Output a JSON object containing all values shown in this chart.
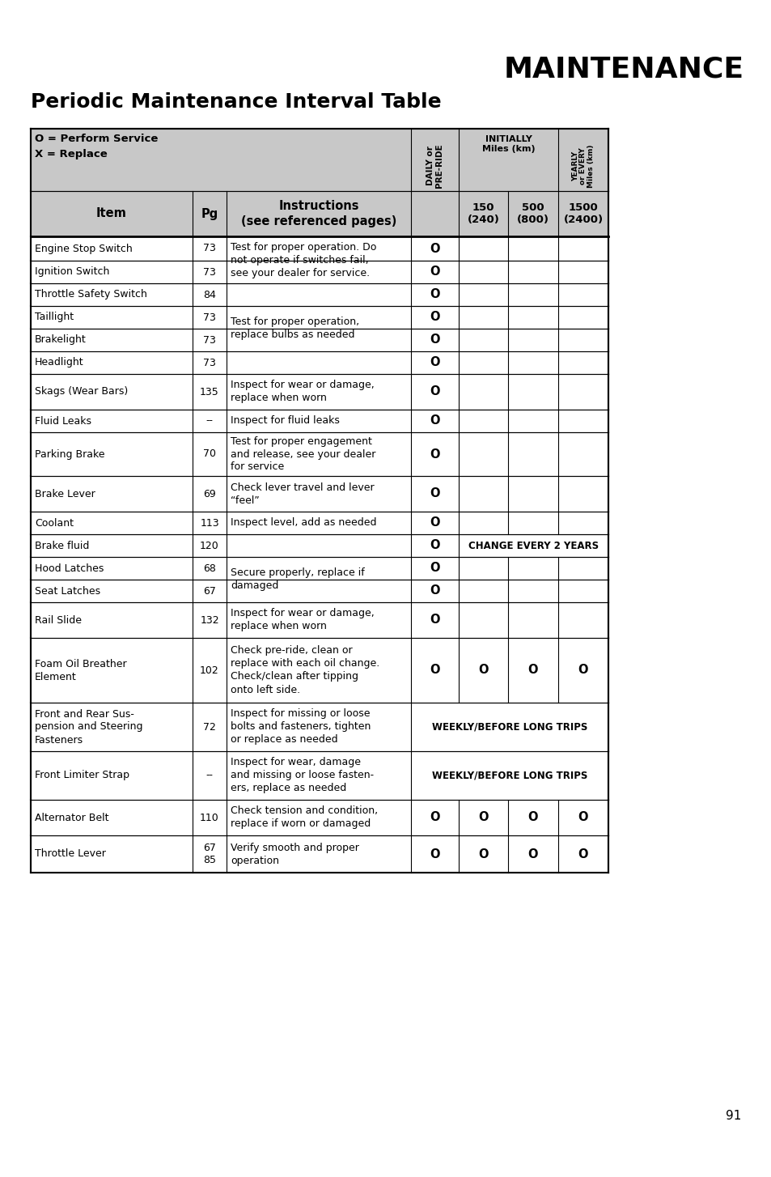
{
  "title_right": "MAINTENANCE",
  "title_left": "Periodic Maintenance Interval Table",
  "page_number": "91",
  "header_legend": "O = Perform Service\nX = Replace",
  "col_headers_daily": "DAILY or\nPRE-RIDE",
  "col_headers_initially": "INITIALLY\nMiles (km)",
  "col_headers_yearly": "YEARLY\nor EVERY\nMiles (km)",
  "sub_item": "Item",
  "sub_pg": "Pg",
  "sub_instructions": "Instructions\n(see referenced pages)",
  "sub_col150": "150\n(240)",
  "sub_col500": "500\n(800)",
  "sub_col1500": "1500\n(2400)",
  "rows": [
    {
      "item": "Engine Stop Switch",
      "pg": "73",
      "instr": "Test for proper operation. Do\nnot operate if switches fail,\nsee your dealer for service.",
      "instr_span": 2,
      "daily": "O",
      "c150": "",
      "c500": "",
      "c1500": "",
      "span_note": null,
      "span_all": false
    },
    {
      "item": "Ignition Switch",
      "pg": "73",
      "instr": null,
      "instr_span": 0,
      "daily": "O",
      "c150": "",
      "c500": "",
      "c1500": "",
      "span_note": null,
      "span_all": false
    },
    {
      "item": "Throttle Safety Switch",
      "pg": "84",
      "instr": "",
      "instr_span": 1,
      "daily": "O",
      "c150": "",
      "c500": "",
      "c1500": "",
      "span_note": null,
      "span_all": false
    },
    {
      "item": "Taillight",
      "pg": "73",
      "instr": "Test for proper operation,\nreplace bulbs as needed",
      "instr_span": 2,
      "daily": "O",
      "c150": "",
      "c500": "",
      "c1500": "",
      "span_note": null,
      "span_all": false
    },
    {
      "item": "Brakelight",
      "pg": "73",
      "instr": null,
      "instr_span": 0,
      "daily": "O",
      "c150": "",
      "c500": "",
      "c1500": "",
      "span_note": null,
      "span_all": false
    },
    {
      "item": "Headlight",
      "pg": "73",
      "instr": "",
      "instr_span": 1,
      "daily": "O",
      "c150": "",
      "c500": "",
      "c1500": "",
      "span_note": null,
      "span_all": false
    },
    {
      "item": "Skags (Wear Bars)",
      "pg": "135",
      "instr": "Inspect for wear or damage,\nreplace when worn",
      "instr_span": 1,
      "daily": "O",
      "c150": "",
      "c500": "",
      "c1500": "",
      "span_note": null,
      "span_all": false
    },
    {
      "item": "Fluid Leaks",
      "pg": "--",
      "instr": "Inspect for fluid leaks",
      "instr_span": 1,
      "daily": "O",
      "c150": "",
      "c500": "",
      "c1500": "",
      "span_note": null,
      "span_all": false
    },
    {
      "item": "Parking Brake",
      "pg": "70",
      "instr": "Test for proper engagement\nand release, see your dealer\nfor service",
      "instr_span": 1,
      "daily": "O",
      "c150": "",
      "c500": "",
      "c1500": "",
      "span_note": null,
      "span_all": false
    },
    {
      "item": "Brake Lever",
      "pg": "69",
      "instr": "Check lever travel and lever\n“feel”",
      "instr_span": 1,
      "daily": "O",
      "c150": "",
      "c500": "",
      "c1500": "",
      "span_note": null,
      "span_all": false
    },
    {
      "item": "Coolant",
      "pg": "113",
      "instr": "Inspect level, add as needed",
      "instr_span": 1,
      "daily": "O",
      "c150": "",
      "c500": "",
      "c1500": "",
      "span_note": null,
      "span_all": false
    },
    {
      "item": "Brake fluid",
      "pg": "120",
      "instr": "",
      "instr_span": 1,
      "daily": "O",
      "c150": "",
      "c500": "",
      "c1500": "",
      "span_note": "CHANGE EVERY 2 YEARS",
      "span_all": false
    },
    {
      "item": "Hood Latches",
      "pg": "68",
      "instr": "Secure properly, replace if\ndamaged",
      "instr_span": 2,
      "daily": "O",
      "c150": "",
      "c500": "",
      "c1500": "",
      "span_note": null,
      "span_all": false
    },
    {
      "item": "Seat Latches",
      "pg": "67",
      "instr": null,
      "instr_span": 0,
      "daily": "O",
      "c150": "",
      "c500": "",
      "c1500": "",
      "span_note": null,
      "span_all": false
    },
    {
      "item": "Rail Slide",
      "pg": "132",
      "instr": "Inspect for wear or damage,\nreplace when worn",
      "instr_span": 1,
      "daily": "O",
      "c150": "",
      "c500": "",
      "c1500": "",
      "span_note": null,
      "span_all": false
    },
    {
      "item": "Foam Oil Breather\nElement",
      "pg": "102",
      "instr": "Check pre-ride, clean or\nreplace with each oil change.\nCheck/clean after tipping\nonto left side.",
      "instr_span": 1,
      "daily": "O",
      "c150": "O",
      "c500": "O",
      "c1500": "O",
      "span_note": null,
      "span_all": false
    },
    {
      "item": "Front and Rear Sus-\npension and Steering\nFasteners",
      "pg": "72",
      "instr": "Inspect for missing or loose\nbolts and fasteners, tighten\nor replace as needed",
      "instr_span": 1,
      "daily": "",
      "c150": "",
      "c500": "",
      "c1500": "",
      "span_note": "WEEKLY/BEFORE LONG TRIPS",
      "span_all": true
    },
    {
      "item": "Front Limiter Strap",
      "pg": "--",
      "instr": "Inspect for wear, damage\nand missing or loose fasten-\ners, replace as needed",
      "instr_span": 1,
      "daily": "",
      "c150": "",
      "c500": "",
      "c1500": "",
      "span_note": "WEEKLY/BEFORE LONG TRIPS",
      "span_all": true
    },
    {
      "item": "Alternator Belt",
      "pg": "110",
      "instr": "Check tension and condition,\nreplace if worn or damaged",
      "instr_span": 1,
      "daily": "O",
      "c150": "O",
      "c500": "O",
      "c1500": "O",
      "span_note": null,
      "span_all": false
    },
    {
      "item": "Throttle Lever",
      "pg": "67\n85",
      "instr": "Verify smooth and proper\noperation",
      "instr_span": 1,
      "daily": "O",
      "c150": "O",
      "c500": "O",
      "c1500": "O",
      "span_note": null,
      "span_all": false
    }
  ],
  "bg_color": "#ffffff",
  "gray_bg": "#c8c8c8",
  "border_color": "#000000"
}
